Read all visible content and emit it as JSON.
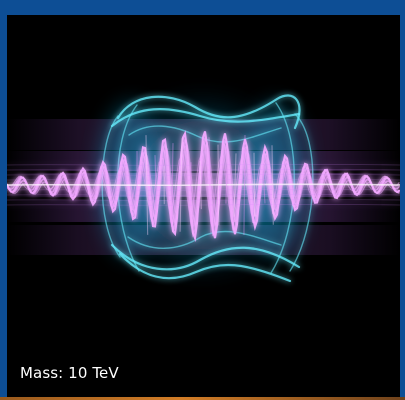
{
  "caption": {
    "text": "Mass: 10 TeV"
  },
  "colors": {
    "frame": "#0d4e95",
    "background": "#000000",
    "magenta_waves": "#f2a9ff",
    "cyan_glow": "#33dfff",
    "bottom_strip": "#c66f20"
  }
}
